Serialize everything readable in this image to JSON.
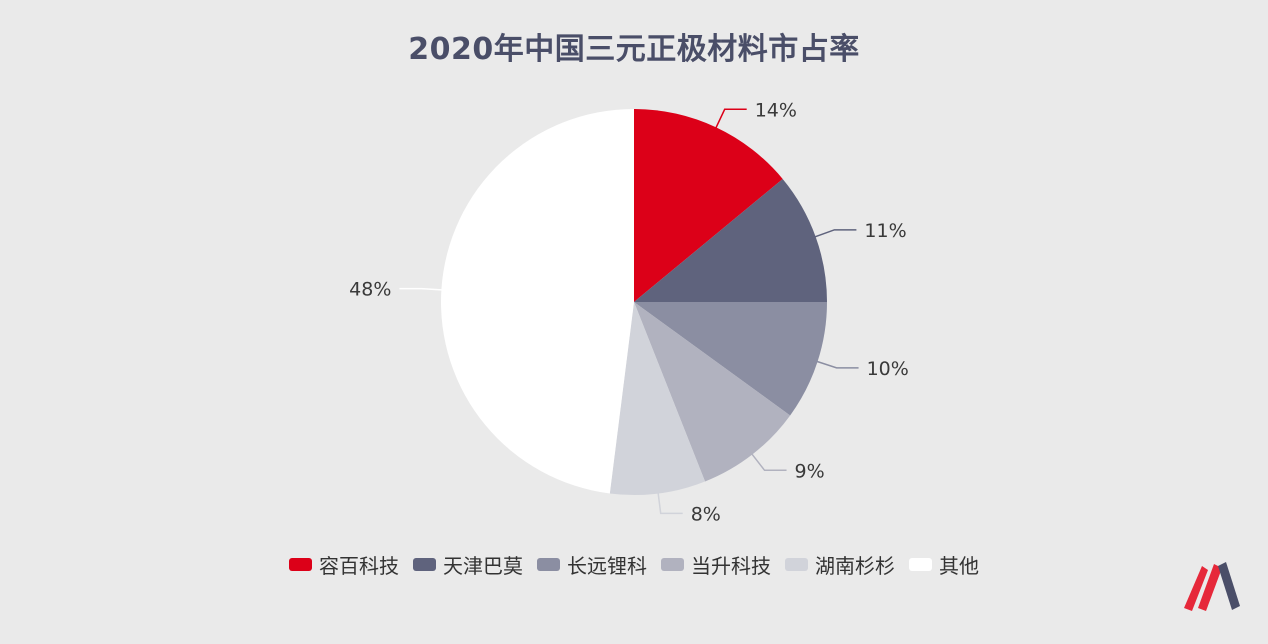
{
  "chart_data": {
    "type": "pie",
    "title": "2020年中国三元正极材料市占率",
    "legend_position": "bottom",
    "slices": [
      {
        "label": "容百科技",
        "value": 14,
        "display": "14%",
        "color": "#DC0018"
      },
      {
        "label": "天津巴莫",
        "value": 11,
        "display": "11%",
        "color": "#5F637D"
      },
      {
        "label": "长远锂科",
        "value": 10,
        "display": "10%",
        "color": "#8B8EA2"
      },
      {
        "label": "当升科技",
        "value": 9,
        "display": "9%",
        "color": "#B1B2BF"
      },
      {
        "label": "湖南杉杉",
        "value": 8,
        "display": "8%",
        "color": "#D1D3DA"
      },
      {
        "label": "其他",
        "value": 48,
        "display": "48%",
        "color": "#FFFFFF"
      }
    ]
  },
  "logo": {
    "name": "brand-logo",
    "colors": [
      "#E6283A",
      "#4A4E68"
    ]
  }
}
